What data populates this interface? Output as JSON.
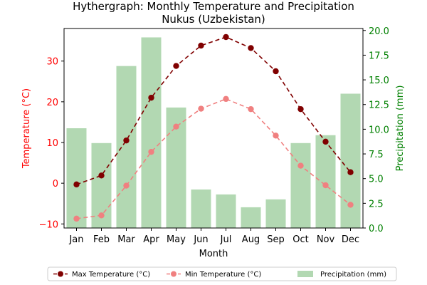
{
  "chart_data": {
    "type": "bar+line",
    "title_line1": "Hythergraph: Monthly Temperature and Precipitation",
    "title_line2": "Nukus (Uzbekistan)",
    "xlabel": "Month",
    "ylabel_left": "Temperature (°C)",
    "ylabel_right": "Precipitation (mm)",
    "categories": [
      "Jan",
      "Feb",
      "Mar",
      "Apr",
      "May",
      "Jun",
      "Jul",
      "Aug",
      "Sep",
      "Oct",
      "Nov",
      "Dec"
    ],
    "ylim_left": [
      -11,
      38
    ],
    "yticks_left": [
      -10,
      0,
      10,
      20,
      30
    ],
    "ylim_right": [
      0,
      20.2
    ],
    "yticks_right": [
      0.0,
      2.5,
      5.0,
      7.5,
      10.0,
      12.5,
      15.0,
      17.5,
      20.0
    ],
    "yticks_right_labels": [
      "0.0",
      "2.5",
      "5.0",
      "7.5",
      "10.0",
      "12.5",
      "15.0",
      "17.5",
      "20.0"
    ],
    "series": [
      {
        "name": "Precipitation (mm)",
        "kind": "bar",
        "axis": "right",
        "color": "#b2d8b2",
        "values": [
          10.1,
          8.6,
          16.4,
          19.3,
          12.2,
          3.9,
          3.4,
          2.1,
          2.9,
          8.6,
          9.4,
          13.6
        ]
      },
      {
        "name": "Max Temperature (°C)",
        "kind": "line",
        "axis": "left",
        "color": "#800000",
        "dash": "6,4",
        "values": [
          -0.3,
          1.9,
          10.5,
          21.0,
          28.8,
          33.8,
          35.9,
          33.2,
          27.5,
          18.2,
          10.2,
          2.7
        ]
      },
      {
        "name": "Min Temperature (°C)",
        "kind": "line",
        "axis": "left",
        "color": "#f08080",
        "dash": "6,4",
        "values": [
          -8.7,
          -7.9,
          -0.6,
          7.7,
          13.9,
          18.3,
          20.7,
          18.2,
          11.7,
          4.3,
          -0.5,
          -5.3
        ]
      }
    ],
    "left_axis_color": "#ff0000",
    "right_axis_color": "#008000",
    "legend": {
      "placement": "bottom-center",
      "items": [
        "Max Temperature (°C)",
        "Min Temperature (°C)",
        "Precipitation (mm)"
      ]
    },
    "grid": false
  }
}
